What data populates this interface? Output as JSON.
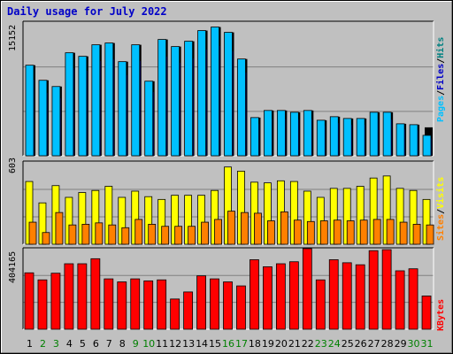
{
  "chart_data": {
    "title": "Daily usage for July 2022",
    "type": "bar",
    "x": [
      "1",
      "2",
      "3",
      "4",
      "5",
      "6",
      "7",
      "8",
      "9",
      "10",
      "11",
      "12",
      "13",
      "14",
      "15",
      "16",
      "17",
      "18",
      "19",
      "20",
      "21",
      "22",
      "23",
      "24",
      "25",
      "26",
      "27",
      "28",
      "29",
      "30",
      "31"
    ],
    "weekend_days": [
      "2",
      "3",
      "9",
      "10",
      "16",
      "17",
      "23",
      "24",
      "30",
      "31"
    ],
    "colors": {
      "pages": "#00c0ff",
      "pages_shadow": "#00326e",
      "files": "#0000c8",
      "hits": "#008080",
      "visits": "#ffff00",
      "sites": "#ff8000",
      "kbytes": "#ff0000",
      "weekday_tick": "#000000",
      "weekend_tick": "#008000"
    },
    "panels": [
      {
        "name": "hits-files-pages",
        "ymax_label": "15152",
        "ylim": [
          0,
          15152
        ],
        "right_labels": [
          {
            "text": "Pages",
            "color": "#00c0ff"
          },
          {
            "text": "/",
            "color": "#000000"
          },
          {
            "text": "Files",
            "color": "#0000c8"
          },
          {
            "text": "/",
            "color": "#000000"
          },
          {
            "text": "Hits",
            "color": "#008080"
          }
        ],
        "series": [
          {
            "name": "Hits",
            "color": "#008080",
            "values": [
              10200,
              8500,
              7800,
              11600,
              11200,
              12500,
              12700,
              10600,
              12500,
              8400,
              13100,
              12300,
              12900,
              14100,
              14500,
              13900,
              10900,
              4300,
              5100,
              5100,
              4900,
              5100,
              4000,
              4400,
              4200,
              4200,
              4900,
              4900,
              3600,
              3500,
              3200
            ]
          },
          {
            "name": "Files",
            "color": "#0000c8",
            "values": [
              8600,
              7100,
              6500,
              9900,
              9600,
              10700,
              10900,
              9100,
              10700,
              7200,
              11200,
              10500,
              11000,
              12000,
              12400,
              11800,
              9400,
              3600,
              4200,
              4200,
              4100,
              4200,
              3400,
              3700,
              3500,
              3500,
              4100,
              4100,
              3000,
              2900,
              2000
            ]
          },
          {
            "name": "Pages",
            "color": "#00c0ff",
            "values": [
              10200,
              8500,
              7800,
              11600,
              11200,
              12500,
              12700,
              10600,
              12500,
              8400,
              13100,
              12300,
              12900,
              14100,
              14500,
              13900,
              10900,
              4300,
              5100,
              5100,
              4900,
              5100,
              4000,
              4400,
              4200,
              4200,
              4900,
              4900,
              3600,
              3500,
              2300
            ]
          }
        ]
      },
      {
        "name": "visits-sites",
        "ymax_label": "603",
        "ylim": [
          0,
          603
        ],
        "right_labels": [
          {
            "text": "Sites",
            "color": "#ff8000"
          },
          {
            "text": "/",
            "color": "#000000"
          },
          {
            "text": "Visits",
            "color": "#ffff00"
          }
        ],
        "series": [
          {
            "name": "Visits",
            "color": "#ffff00",
            "values": [
              455,
              300,
              425,
              340,
              375,
              390,
              420,
              340,
              385,
              345,
              325,
              355,
              355,
              355,
              390,
              560,
              530,
              450,
              445,
              460,
              455,
              385,
              340,
              405,
              405,
              420,
              480,
              495,
              405,
              390,
              325
            ]
          },
          {
            "name": "Sites",
            "color": "#ff8000",
            "values": [
              160,
              85,
              230,
              140,
              145,
              155,
              140,
              120,
              180,
              145,
              130,
              130,
              130,
              160,
              180,
              240,
              230,
              225,
              170,
              235,
              175,
              165,
              170,
              175,
              170,
              175,
              180,
              180,
              160,
              145,
              140
            ]
          }
        ]
      },
      {
        "name": "kbytes",
        "ymax_label": "404165",
        "ylim": [
          0,
          404165
        ],
        "right_labels": [
          {
            "text": "KBytes",
            "color": "#ff0000"
          }
        ],
        "series": [
          {
            "name": "KBytes",
            "color": "#ff0000",
            "values": [
              280000,
              245000,
              278000,
              325000,
              325000,
              350000,
              250000,
              235000,
              250000,
              240000,
              245000,
              150000,
              185000,
              265000,
              250000,
              235000,
              215000,
              345000,
              310000,
              325000,
              335000,
              400000,
              245000,
              345000,
              330000,
              320000,
              390000,
              395000,
              290000,
              300000,
              165000
            ]
          }
        ]
      }
    ]
  }
}
